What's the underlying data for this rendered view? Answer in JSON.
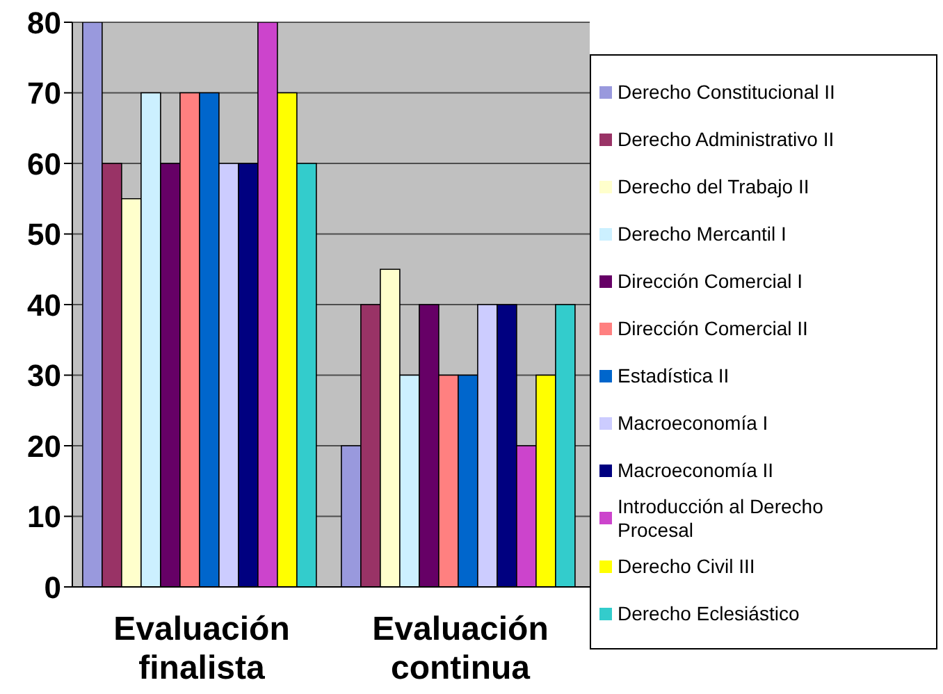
{
  "chart_data": {
    "type": "bar",
    "categories": [
      "Evaluación finalista",
      "Evaluación continua"
    ],
    "series": [
      {
        "name": "Derecho Constitucional II",
        "color": "#9999dd",
        "values": [
          80,
          20
        ]
      },
      {
        "name": "Derecho Administrativo II",
        "color": "#993366",
        "values": [
          60,
          40
        ]
      },
      {
        "name": "Derecho del Trabajo II",
        "color": "#ffffcc",
        "values": [
          55,
          45
        ]
      },
      {
        "name": "Derecho Mercantil I",
        "color": "#ccf0ff",
        "values": [
          70,
          30
        ]
      },
      {
        "name": "Dirección Comercial I",
        "color": "#660066",
        "values": [
          60,
          40
        ]
      },
      {
        "name": "Dirección Comercial II",
        "color": "#ff8080",
        "values": [
          70,
          30
        ]
      },
      {
        "name": "Estadística II",
        "color": "#0066cc",
        "values": [
          70,
          30
        ]
      },
      {
        "name": "Macroeconomía I",
        "color": "#ccccff",
        "values": [
          60,
          40
        ]
      },
      {
        "name": "Macroeconomía II",
        "color": "#000080",
        "values": [
          60,
          40
        ]
      },
      {
        "name": "Introducción al Derecho Procesal",
        "color": "#cc44cc",
        "values": [
          80,
          20
        ]
      },
      {
        "name": "Derecho Civil III",
        "color": "#ffff00",
        "values": [
          70,
          30
        ]
      },
      {
        "name": "Derecho Eclesiástico",
        "color": "#33cccc",
        "values": [
          60,
          40
        ]
      }
    ],
    "ylim": [
      0,
      80
    ],
    "yticks": [
      0,
      10,
      20,
      30,
      40,
      50,
      60,
      70,
      80
    ],
    "grid": "y",
    "legend": "right"
  }
}
